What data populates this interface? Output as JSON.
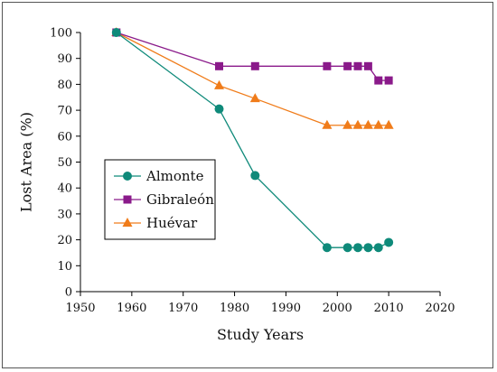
{
  "chart_data": {
    "type": "line",
    "xlabel": "Study Years",
    "ylabel": "Lost Area (%)",
    "xlim": [
      1950,
      2020
    ],
    "ylim": [
      0,
      100
    ],
    "xticks": [
      1950,
      1960,
      1970,
      1980,
      1990,
      2000,
      2010,
      2020
    ],
    "yticks": [
      0,
      10,
      20,
      30,
      40,
      50,
      60,
      70,
      80,
      90,
      100
    ],
    "grid": false,
    "legend_position": "bottom-left",
    "series": [
      {
        "name": "Almonte",
        "color": "#0f8a7a",
        "marker": "circle",
        "x": [
          1957,
          1977,
          1984,
          1998,
          2002,
          2004,
          2006,
          2008,
          2010
        ],
        "y": [
          100,
          70.5,
          44.8,
          17,
          17,
          17,
          17,
          17,
          19
        ]
      },
      {
        "name": "Gibraleón",
        "color": "#8a1a8a",
        "marker": "square",
        "x": [
          1957,
          1977,
          1984,
          1998,
          2002,
          2004,
          2006,
          2008,
          2010
        ],
        "y": [
          100,
          87,
          87,
          87,
          87,
          87,
          87,
          81.5,
          81.5
        ]
      },
      {
        "name": "Huévar",
        "color": "#f07c1a",
        "marker": "triangle",
        "x": [
          1957,
          1977,
          1984,
          1998,
          2002,
          2004,
          2006,
          2008,
          2010
        ],
        "y": [
          100,
          79.5,
          74.5,
          64.2,
          64.2,
          64.2,
          64.2,
          64.2,
          64.2
        ]
      }
    ]
  }
}
